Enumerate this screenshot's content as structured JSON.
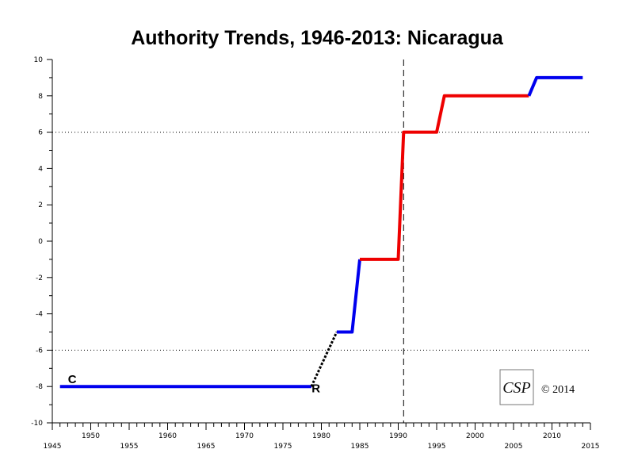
{
  "chart_data": {
    "type": "line",
    "title": "Authority Trends, 1946-2013: Nicaragua",
    "xlim": [
      1945,
      2015
    ],
    "ylim": [
      -10,
      10
    ],
    "x_ticks_upper": [
      "1950",
      "1960",
      "1970",
      "1980",
      "1990",
      "2000",
      "2010"
    ],
    "x_ticks_lower": [
      "1945",
      "1955",
      "1965",
      "1975",
      "1985",
      "1995",
      "2005",
      "2015"
    ],
    "y_ticks": [
      "10",
      "8",
      "6",
      "4",
      "2",
      "0",
      "-2",
      "-4",
      "-6",
      "-8",
      "-10"
    ],
    "reference_lines": {
      "horizontal_dotted": [
        6,
        -6
      ],
      "vertical_dashed": [
        1990.7
      ]
    },
    "series": [
      {
        "color": "#0000ee",
        "style": "solid",
        "points": [
          [
            1946,
            -8
          ],
          [
            1978.7,
            -8
          ]
        ]
      },
      {
        "color": "#000000",
        "style": "dotted",
        "points": [
          [
            1978.7,
            -8
          ],
          [
            1982,
            -5
          ]
        ]
      },
      {
        "color": "#0000ee",
        "style": "solid",
        "points": [
          [
            1982,
            -5
          ],
          [
            1984,
            -5
          ],
          [
            1985,
            -1
          ]
        ]
      },
      {
        "color": "#ee0000",
        "style": "solid",
        "points": [
          [
            1985,
            -1
          ],
          [
            1990,
            -1
          ],
          [
            1990.7,
            6
          ],
          [
            1995,
            6
          ],
          [
            1996,
            8
          ],
          [
            2007,
            8
          ]
        ]
      },
      {
        "color": "#0000ee",
        "style": "solid",
        "points": [
          [
            2007,
            8
          ],
          [
            2008,
            9
          ],
          [
            2014,
            9
          ]
        ]
      }
    ],
    "annotations": [
      {
        "text": "C",
        "x": 1947.6,
        "y": -7.6
      },
      {
        "text": "R",
        "x": 1979.3,
        "y": -8.1
      }
    ],
    "copyright": "© 2014",
    "logo_text": "CSP"
  }
}
